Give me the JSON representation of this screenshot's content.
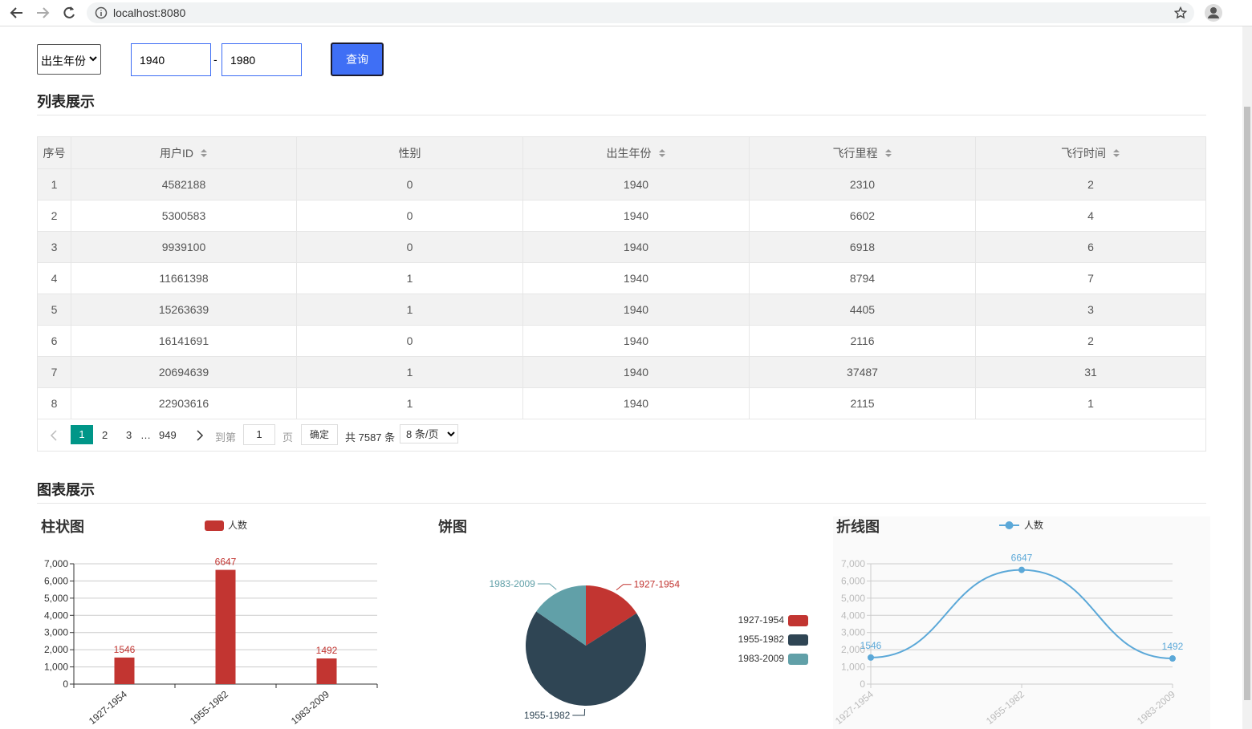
{
  "browser": {
    "url": "localhost:8080"
  },
  "form": {
    "field": "出生年份",
    "from": "1940",
    "separator": "-",
    "to": "1980",
    "button": "查询"
  },
  "list_section": "列表展示",
  "table": {
    "columns": [
      "序号",
      "用户ID",
      "性别",
      "出生年份",
      "飞行里程",
      "飞行时间"
    ],
    "sortable": [
      false,
      true,
      false,
      true,
      true,
      true
    ],
    "rows": [
      [
        1,
        4582188,
        0,
        1940,
        2310,
        2
      ],
      [
        2,
        5300583,
        0,
        1940,
        6602,
        4
      ],
      [
        3,
        9939100,
        0,
        1940,
        6918,
        6
      ],
      [
        4,
        11661398,
        1,
        1940,
        8794,
        7
      ],
      [
        5,
        15263639,
        1,
        1940,
        4405,
        3
      ],
      [
        6,
        16141691,
        0,
        1940,
        2116,
        2
      ],
      [
        7,
        20694639,
        1,
        1940,
        37487,
        31
      ],
      [
        8,
        22903616,
        1,
        1940,
        2115,
        1
      ]
    ]
  },
  "pagination": {
    "current": "1",
    "pages": [
      "2",
      "3"
    ],
    "ellipsis": "…",
    "last": "949",
    "goto": "到第",
    "page_input": "1",
    "page_unit": "页",
    "confirm": "确定",
    "total": "共 7587 条",
    "page_size": "8 条/页"
  },
  "chart_section": "图表展示",
  "chart_data": [
    {
      "type": "bar",
      "title": "柱状图",
      "legend": "人数",
      "categories": [
        "1927-1954",
        "1955-1982",
        "1983-2009"
      ],
      "values": [
        1546,
        6647,
        1492
      ],
      "color": "#c23531",
      "ylim": [
        0,
        7000
      ],
      "yticks": [
        0,
        {
          "value": 1000,
          "label": "1,000"
        },
        {
          "value": 2000,
          "label": "2,000"
        },
        {
          "value": 3000,
          "label": "3,000"
        },
        {
          "value": 4000,
          "label": "4,000"
        },
        {
          "value": 5000,
          "label": "5,000"
        },
        {
          "value": 6000,
          "label": "6,000"
        },
        {
          "value": 7000,
          "label": "7,000"
        }
      ],
      "grid": true
    },
    {
      "type": "pie",
      "title": "饼图",
      "categories": [
        "1927-1954",
        "1955-1982",
        "1983-2009"
      ],
      "values": [
        1546,
        6647,
        1492
      ],
      "colors": [
        "#c23531",
        "#2f4554",
        "#61a0a8"
      ]
    },
    {
      "type": "line",
      "title": "折线图",
      "categories": [
        "1927-1954",
        "1955-1982",
        "1983-2009"
      ],
      "series": [
        {
          "name": "人数",
          "color": "#5ba8d8",
          "values": [
            1546,
            6647,
            1492
          ]
        }
      ],
      "ylim": [
        0,
        7000
      ],
      "yticks": [
        0,
        {
          "value": 1000,
          "label": "1,000"
        },
        {
          "value": 2000,
          "label": "2,000"
        },
        {
          "value": 3000,
          "label": "3,000"
        },
        {
          "value": 4000,
          "label": "4,000"
        },
        {
          "value": 5000,
          "label": "5,000"
        },
        {
          "value": 6000,
          "label": "6,000"
        },
        {
          "value": 7000,
          "label": "7,000"
        }
      ],
      "grid": true,
      "smooth": true
    }
  ]
}
